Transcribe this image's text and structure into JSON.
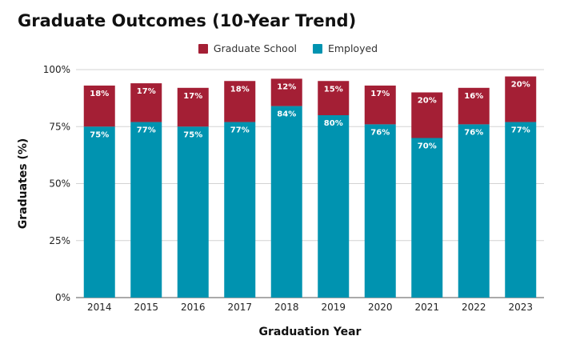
{
  "chart_data": {
    "type": "bar",
    "stacked": true,
    "title": "Graduate Outcomes (10-Year Trend)",
    "xlabel": "Graduation Year",
    "ylabel": "Graduates (%)",
    "categories": [
      "2014",
      "2015",
      "2016",
      "2017",
      "2018",
      "2019",
      "2020",
      "2021",
      "2022",
      "2023"
    ],
    "series": [
      {
        "name": "Employed",
        "color": "#0093b0",
        "values": [
          75,
          77,
          75,
          77,
          84,
          80,
          76,
          70,
          76,
          77
        ],
        "labels": [
          "75%",
          "77%",
          "75%",
          "77%",
          "84%",
          "80%",
          "76%",
          "70%",
          "76%",
          "77%"
        ]
      },
      {
        "name": "Graduate School",
        "color": "#a41f35",
        "values": [
          18,
          17,
          17,
          18,
          12,
          15,
          17,
          20,
          16,
          20
        ],
        "labels": [
          "18%",
          "17%",
          "17%",
          "18%",
          "12%",
          "15%",
          "17%",
          "20%",
          "16%",
          "20%"
        ]
      }
    ],
    "legend_order": [
      "Graduate School",
      "Employed"
    ],
    "ylim": [
      0,
      100
    ],
    "yticks": [
      0,
      25,
      50,
      75,
      100
    ],
    "ytick_labels": [
      "0%",
      "25%",
      "50%",
      "75%",
      "100%"
    ],
    "grid": true,
    "legend_position": "top-center"
  }
}
